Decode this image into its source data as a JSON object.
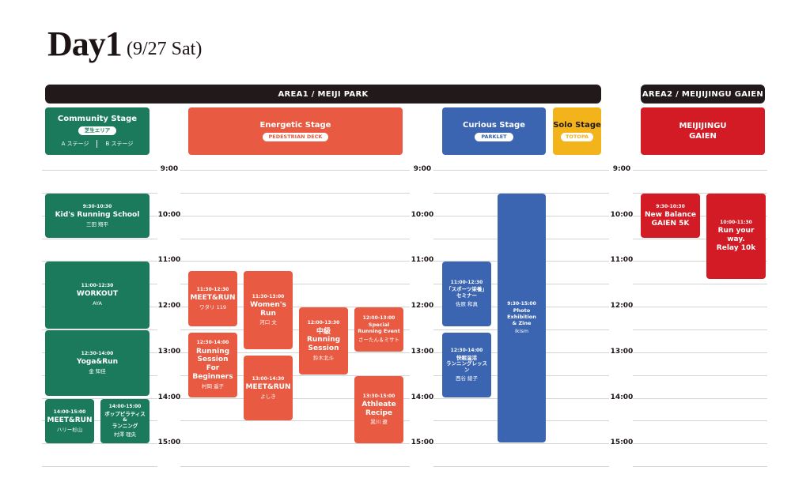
{
  "header": {
    "day": "Day1",
    "date": "(9/27 Sat)"
  },
  "areas": {
    "area1": "AREA1 / MEIJI PARK",
    "area2": "AREA2 / MEIJIJINGU GAIEN"
  },
  "stages": {
    "community": {
      "name": "Community Stage",
      "sub": "芝生エリア",
      "a": "A ステージ",
      "b": "B ステージ"
    },
    "energetic": {
      "name": "Energetic Stage",
      "sub": "PEDESTRIAN DECK"
    },
    "curious": {
      "name": "Curious Stage",
      "sub": "PARKLET"
    },
    "solo": {
      "name": "Solo Stage",
      "sub": "TOTOPA"
    },
    "gaien": {
      "name": "MEIJIJINGU\nGAIEN"
    }
  },
  "time_labels": [
    "9:00",
    "10:00",
    "11:00",
    "12:00",
    "13:00",
    "14:00",
    "15:00"
  ],
  "events": [
    {
      "time": "9:30-10:30",
      "title": "Kid's Running School",
      "who": "三田 翔平"
    },
    {
      "time": "11:00-12:30",
      "title": "WORKOUT",
      "who": "AYA"
    },
    {
      "time": "12:30-14:00",
      "title": "Yoga&Run",
      "who": "金 知佳"
    },
    {
      "time": "14:00-15:00",
      "title": "MEET&RUN",
      "who": "ハリー杉山"
    },
    {
      "time": "14:00-15:00",
      "title": "ボップピラティス&\nランニング",
      "who": "村澤 理央"
    },
    {
      "time": "11:30-12:30",
      "title": "MEET&RUN",
      "who": "ワタリ 119"
    },
    {
      "time": "12:30-14:00",
      "title": "Running\nSession\nFor\nBeginners",
      "who": "村岡 遥子"
    },
    {
      "time": "11:30-13:00",
      "title": "Women's\nRun",
      "who": "河口 文"
    },
    {
      "time": "13:00-14:30",
      "title": "MEET&RUN",
      "who": "よしき"
    },
    {
      "time": "12:00-13:30",
      "title": "中級\nRunning\nSession",
      "who": "鈴木北斗"
    },
    {
      "time": "12:00-13:00",
      "title": "Special\nRunning Event",
      "who": "さーたん＆ミサト"
    },
    {
      "time": "13:30-15:00",
      "title": "Athleate\nRecipe",
      "who": "黒川 遼"
    },
    {
      "time": "11:00-12:30",
      "title": "「スポーツ栄養」\nセミナー",
      "who": "佐原 和真"
    },
    {
      "time": "12:30-14:00",
      "title": "快眠温活\nランニングレッスン",
      "who": "西谷 綾子"
    },
    {
      "time": "9:30-15:00",
      "title": "Photo\nExhibition\n& Zine",
      "who": "ikism"
    },
    {
      "time": "9:30-10:30",
      "title": "New Balance\nGAIEN 5K",
      "who": ""
    },
    {
      "time": "10:00-11:30",
      "title": "Run your way.\nRelay 10k",
      "who": ""
    }
  ]
}
